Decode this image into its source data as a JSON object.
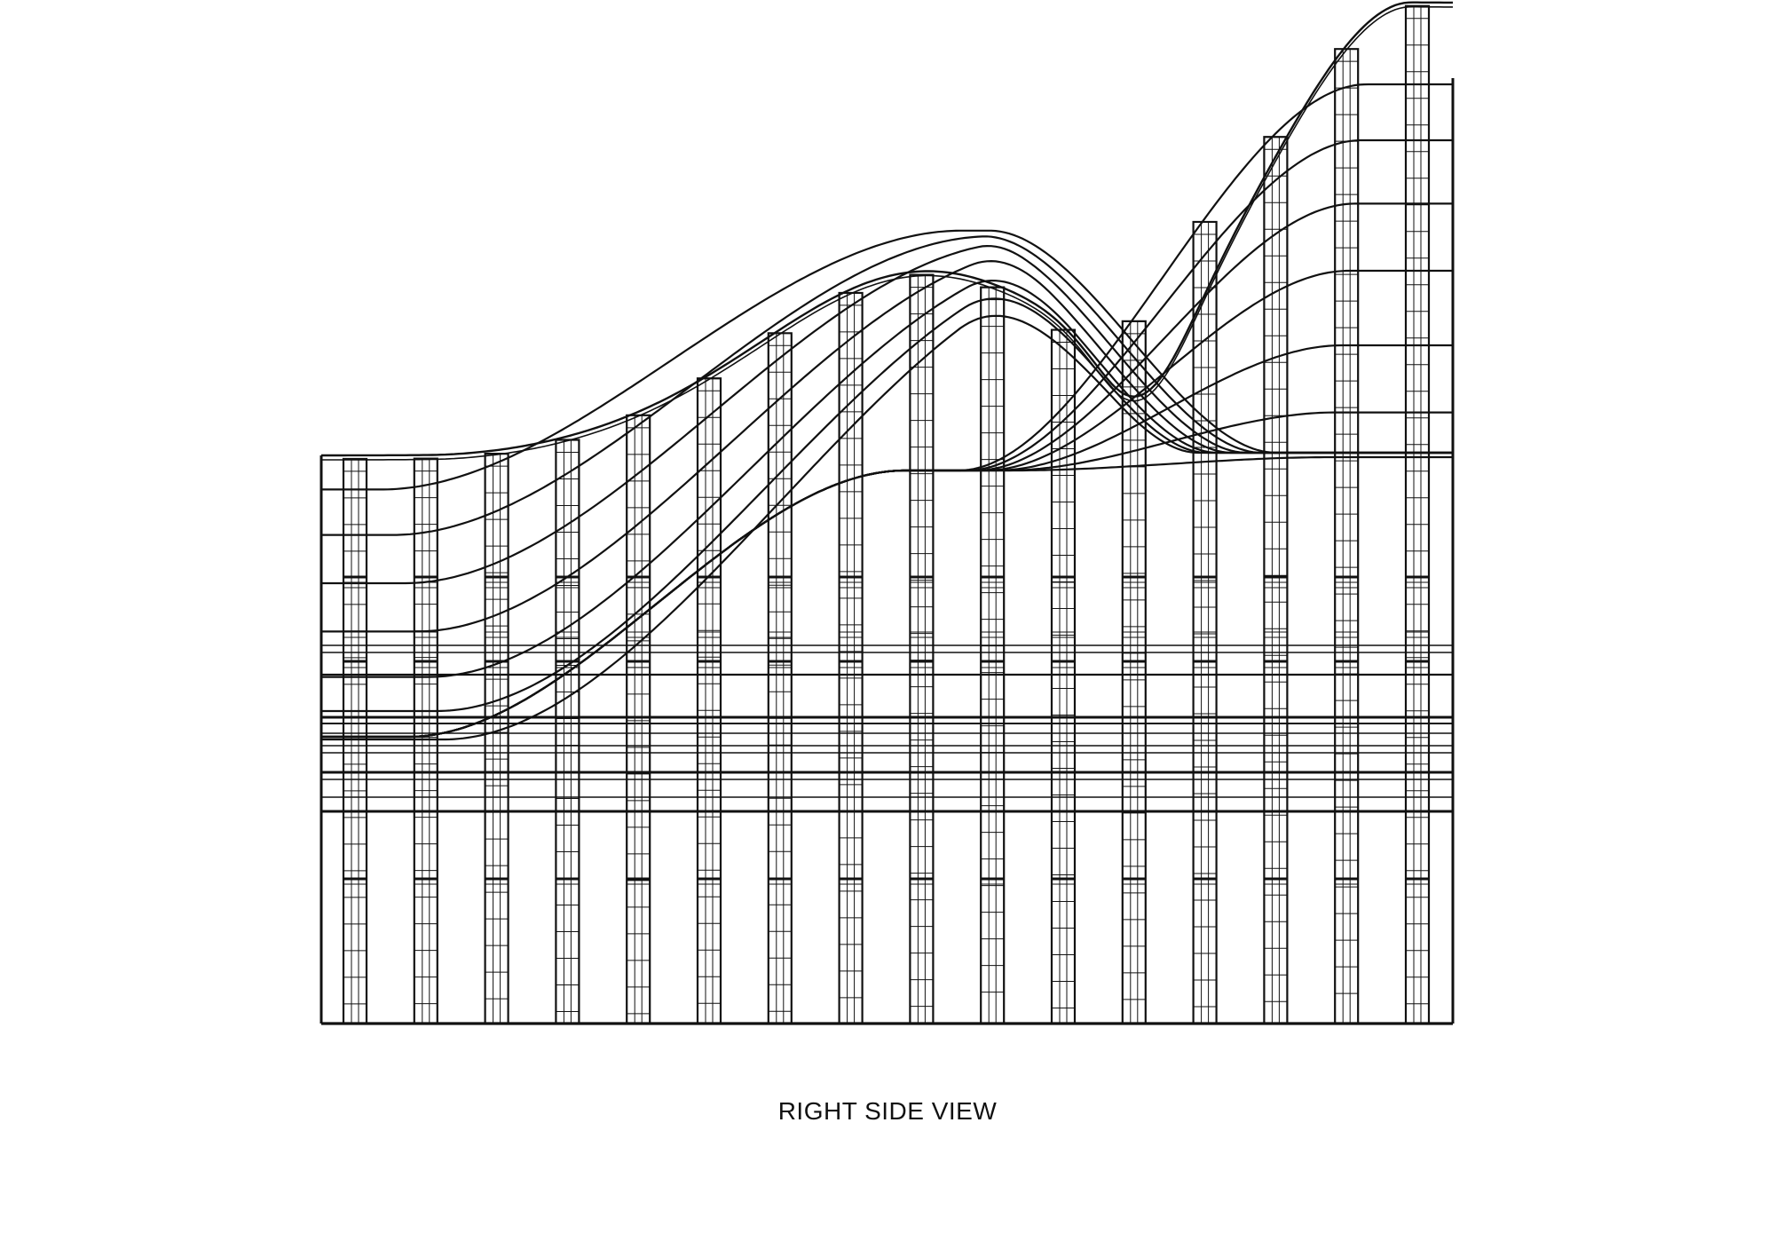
{
  "caption": "RIGHT SIDE VIEW",
  "colors": {
    "ink": "#111111",
    "background": "#ffffff"
  }
}
